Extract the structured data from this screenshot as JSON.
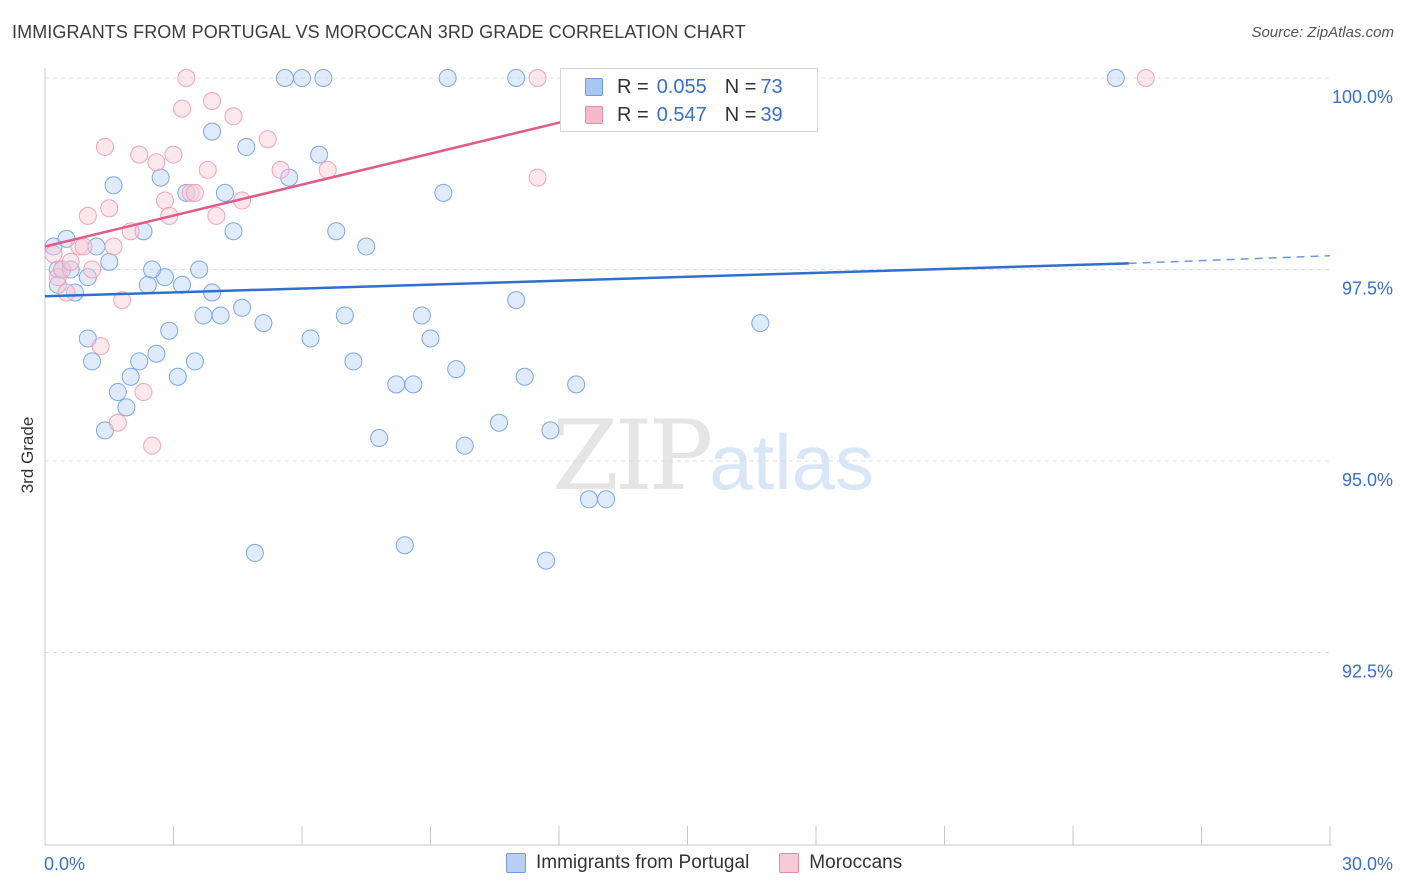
{
  "title": "IMMIGRANTS FROM PORTUGAL VS MOROCCAN 3RD GRADE CORRELATION CHART",
  "source": "Source: ZipAtlas.com",
  "watermark": {
    "zip": "ZIP",
    "atlas": "atlas"
  },
  "legend_top": [
    {
      "r_label": "R = ",
      "r_value": "0.055",
      "n_label": "N = ",
      "n_value": "73",
      "color": "#a9c6f0",
      "border": "#6f9be0"
    },
    {
      "r_label": "R = ",
      "r_value": "0.547",
      "n_label": "N = ",
      "n_value": "39",
      "color": "#f6b8cc",
      "border": "#e98aa8"
    }
  ],
  "legend_bottom": [
    {
      "label": "Immigrants from Portugal",
      "color": "#b8d0f4",
      "border": "#6f9be0"
    },
    {
      "label": "Moroccans",
      "color": "#f9c9d8",
      "border": "#e98aa8"
    }
  ],
  "chart_data": {
    "type": "scatter",
    "title": "IMMIGRANTS FROM PORTUGAL VS MOROCCAN 3RD GRADE CORRELATION CHART",
    "xlabel": "",
    "ylabel": "3rd Grade",
    "xlim": [
      0,
      30
    ],
    "ylim": [
      90.0,
      100.2
    ],
    "x_tick_labels": [
      "0.0%",
      "30.0%"
    ],
    "y_ticks": [
      92.5,
      95.0,
      97.5,
      100.0
    ],
    "y_tick_labels": [
      "92.5%",
      "95.0%",
      "97.5%",
      "100.0%"
    ],
    "grid": true,
    "series": [
      {
        "name": "Immigrants from Portugal",
        "color": "#7ea7e4",
        "line_color": "#2e6fd0",
        "trend": {
          "x0": 0,
          "y0": 97.15,
          "x1": 25.3,
          "y1": 97.58,
          "dash_to_x": 30,
          "dash_to_y": 97.68
        },
        "points": [
          [
            0.2,
            97.8
          ],
          [
            0.3,
            97.5
          ],
          [
            0.4,
            97.5
          ],
          [
            0.5,
            97.9
          ],
          [
            0.6,
            97.5
          ],
          [
            0.7,
            97.2
          ],
          [
            1.0,
            97.4
          ],
          [
            1.0,
            96.6
          ],
          [
            1.1,
            96.3
          ],
          [
            1.2,
            97.8
          ],
          [
            1.4,
            95.4
          ],
          [
            1.5,
            97.6
          ],
          [
            1.6,
            98.6
          ],
          [
            1.7,
            95.9
          ],
          [
            1.9,
            95.7
          ],
          [
            2.0,
            96.1
          ],
          [
            2.2,
            96.3
          ],
          [
            2.3,
            98.0
          ],
          [
            2.4,
            97.3
          ],
          [
            2.6,
            96.4
          ],
          [
            2.7,
            98.7
          ],
          [
            2.8,
            97.4
          ],
          [
            2.9,
            96.7
          ],
          [
            3.1,
            96.1
          ],
          [
            3.2,
            97.3
          ],
          [
            3.3,
            98.5
          ],
          [
            3.5,
            96.3
          ],
          [
            3.6,
            97.5
          ],
          [
            3.7,
            96.9
          ],
          [
            3.9,
            97.2
          ],
          [
            3.9,
            99.3
          ],
          [
            4.1,
            96.9
          ],
          [
            4.2,
            98.5
          ],
          [
            4.4,
            98.0
          ],
          [
            4.6,
            97.0
          ],
          [
            4.7,
            99.1
          ],
          [
            4.9,
            93.8
          ],
          [
            5.1,
            96.8
          ],
          [
            5.6,
            100.0
          ],
          [
            5.7,
            98.7
          ],
          [
            6.0,
            100.0
          ],
          [
            6.2,
            96.6
          ],
          [
            6.4,
            99.0
          ],
          [
            6.5,
            100.0
          ],
          [
            6.8,
            98.0
          ],
          [
            7.0,
            96.9
          ],
          [
            7.2,
            96.3
          ],
          [
            7.5,
            97.8
          ],
          [
            7.8,
            95.3
          ],
          [
            8.2,
            96.0
          ],
          [
            8.4,
            93.9
          ],
          [
            8.6,
            96.0
          ],
          [
            8.8,
            96.9
          ],
          [
            9.0,
            96.6
          ],
          [
            9.3,
            98.5
          ],
          [
            9.4,
            100.0
          ],
          [
            9.6,
            96.2
          ],
          [
            9.8,
            95.2
          ],
          [
            10.6,
            95.5
          ],
          [
            11.0,
            100.0
          ],
          [
            11.0,
            97.1
          ],
          [
            11.2,
            96.1
          ],
          [
            11.7,
            93.7
          ],
          [
            11.8,
            95.4
          ],
          [
            12.4,
            96.0
          ],
          [
            12.7,
            94.5
          ],
          [
            13.1,
            94.5
          ],
          [
            14.0,
            100.0
          ],
          [
            16.7,
            96.8
          ],
          [
            16.8,
            100.0
          ],
          [
            25.0,
            100.0
          ],
          [
            0.3,
            97.3
          ],
          [
            2.5,
            97.5
          ]
        ]
      },
      {
        "name": "Moroccans",
        "color": "#f0a3bc",
        "line_color": "#e05a8a",
        "trend": {
          "x0": 0,
          "y0": 97.8,
          "x1": 16.7,
          "y1": 100.05
        },
        "points": [
          [
            0.2,
            97.7
          ],
          [
            0.3,
            97.4
          ],
          [
            0.4,
            97.5
          ],
          [
            0.5,
            97.2
          ],
          [
            0.6,
            97.6
          ],
          [
            0.8,
            97.8
          ],
          [
            1.0,
            98.2
          ],
          [
            1.1,
            97.5
          ],
          [
            1.3,
            96.5
          ],
          [
            1.4,
            99.1
          ],
          [
            1.5,
            98.3
          ],
          [
            1.6,
            97.8
          ],
          [
            1.7,
            95.5
          ],
          [
            1.8,
            97.1
          ],
          [
            2.0,
            98.0
          ],
          [
            2.2,
            99.0
          ],
          [
            2.3,
            95.9
          ],
          [
            2.5,
            95.2
          ],
          [
            2.6,
            98.9
          ],
          [
            2.8,
            98.4
          ],
          [
            2.9,
            98.2
          ],
          [
            3.0,
            99.0
          ],
          [
            3.2,
            99.6
          ],
          [
            3.3,
            100.0
          ],
          [
            3.4,
            98.5
          ],
          [
            3.5,
            98.5
          ],
          [
            3.8,
            98.8
          ],
          [
            3.9,
            99.7
          ],
          [
            4.0,
            98.2
          ],
          [
            4.4,
            99.5
          ],
          [
            4.6,
            98.4
          ],
          [
            5.2,
            99.2
          ],
          [
            5.5,
            98.8
          ],
          [
            6.6,
            98.8
          ],
          [
            11.5,
            98.7
          ],
          [
            11.5,
            100.0
          ],
          [
            15.0,
            100.0
          ],
          [
            25.7,
            100.0
          ],
          [
            0.9,
            97.8
          ]
        ]
      }
    ]
  }
}
